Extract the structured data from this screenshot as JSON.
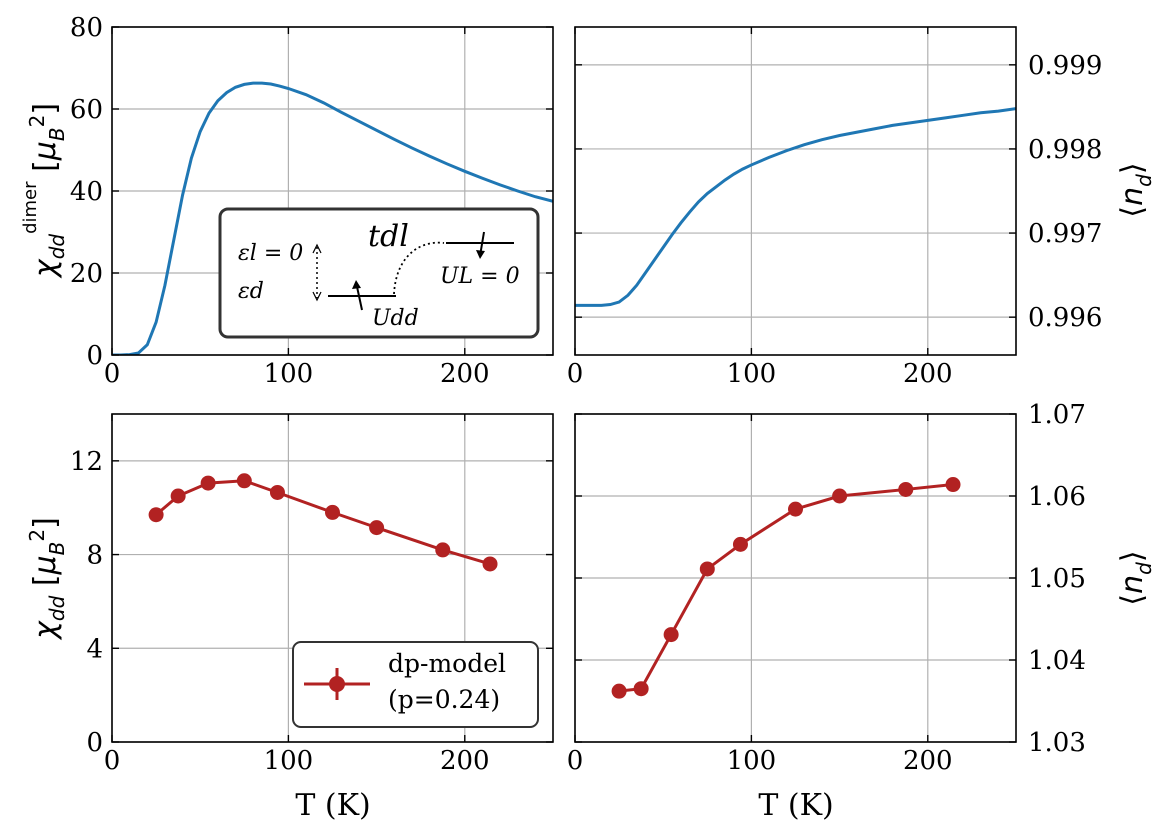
{
  "chart_data": [
    {
      "panel": "top-left",
      "type": "line",
      "xlabel": "",
      "ylabel": "χ_dd^dimer [μ_B^2]",
      "xlim": [
        0,
        250
      ],
      "ylim": [
        0,
        80
      ],
      "xticks": [
        0,
        100,
        200
      ],
      "yticks": [
        0,
        20,
        40,
        60,
        80
      ],
      "color": "#1f77b4",
      "x": [
        0,
        5,
        10,
        15,
        20,
        25,
        30,
        35,
        40,
        45,
        50,
        55,
        60,
        65,
        70,
        75,
        80,
        85,
        90,
        95,
        100,
        110,
        120,
        130,
        140,
        150,
        160,
        170,
        180,
        190,
        200,
        210,
        220,
        230,
        240,
        250
      ],
      "y": [
        0,
        0,
        0.1,
        0.5,
        2.5,
        8,
        17,
        28,
        39,
        48,
        54.5,
        59,
        62,
        64,
        65.3,
        66,
        66.3,
        66.3,
        66.1,
        65.6,
        65,
        63.5,
        61.5,
        59.2,
        57,
        54.8,
        52.6,
        50.5,
        48.5,
        46.6,
        44.8,
        43.1,
        41.5,
        40,
        38.6,
        37.5
      ],
      "inset": {
        "labels": {
          "el": "εl = 0",
          "ed": "εd",
          "tdl": "tdl",
          "udd": "Udd",
          "ul": "UL = 0"
        }
      }
    },
    {
      "panel": "top-right",
      "type": "line",
      "xlabel": "",
      "ylabel": "⟨nd⟩",
      "xlim": [
        0,
        250
      ],
      "ylim": [
        0.99555,
        0.99945
      ],
      "xticks": [
        0,
        100,
        200
      ],
      "yticks": [
        0.996,
        0.997,
        0.998,
        0.999
      ],
      "ytick_labels": [
        "0.996",
        "0.997",
        "0.998",
        "0.999"
      ],
      "color": "#1f77b4",
      "x": [
        0,
        5,
        10,
        15,
        20,
        25,
        30,
        35,
        40,
        45,
        50,
        55,
        60,
        65,
        70,
        75,
        80,
        85,
        90,
        95,
        100,
        110,
        120,
        130,
        140,
        150,
        160,
        170,
        180,
        190,
        200,
        210,
        220,
        230,
        240,
        250
      ],
      "y": [
        0.99614,
        0.99614,
        0.99614,
        0.99614,
        0.99615,
        0.99618,
        0.99626,
        0.99638,
        0.99653,
        0.99668,
        0.99683,
        0.99698,
        0.99712,
        0.99725,
        0.99737,
        0.99747,
        0.99755,
        0.99763,
        0.9977,
        0.99776,
        0.99781,
        0.9979,
        0.99798,
        0.99805,
        0.99811,
        0.99816,
        0.9982,
        0.99824,
        0.99828,
        0.99831,
        0.99834,
        0.99837,
        0.9984,
        0.99843,
        0.99845,
        0.99848
      ]
    },
    {
      "panel": "bottom-left",
      "type": "line",
      "xlabel": "T (K)",
      "ylabel": "χdd [μ_B^2]",
      "xlim": [
        0,
        250
      ],
      "ylim": [
        0,
        14
      ],
      "xticks": [
        0,
        100,
        200
      ],
      "yticks": [
        0,
        4,
        8,
        12
      ],
      "color": "#b22222",
      "markers": true,
      "x": [
        25,
        37.5,
        54.5,
        75,
        93.8,
        125,
        150,
        187.5,
        214.3
      ],
      "y": [
        9.7,
        10.5,
        11.05,
        11.15,
        10.65,
        9.8,
        9.15,
        8.2,
        7.6
      ],
      "legend": {
        "line1": "dp-model",
        "line2": "(p=0.24)"
      }
    },
    {
      "panel": "bottom-right",
      "type": "line",
      "xlabel": "T (K)",
      "ylabel": "⟨nd⟩",
      "xlim": [
        0,
        250
      ],
      "ylim": [
        1.03,
        1.07
      ],
      "xticks": [
        0,
        100,
        200
      ],
      "yticks": [
        1.03,
        1.04,
        1.05,
        1.06,
        1.07
      ],
      "ytick_labels": [
        "1.03",
        "1.04",
        "1.05",
        "1.06",
        "1.07"
      ],
      "color": "#b22222",
      "markers": true,
      "x": [
        25,
        37.5,
        54.5,
        75,
        93.8,
        125,
        150,
        187.5,
        214.3
      ],
      "y": [
        1.0362,
        1.0365,
        1.0431,
        1.0511,
        1.0541,
        1.0584,
        1.06,
        1.0608,
        1.0614
      ]
    }
  ]
}
